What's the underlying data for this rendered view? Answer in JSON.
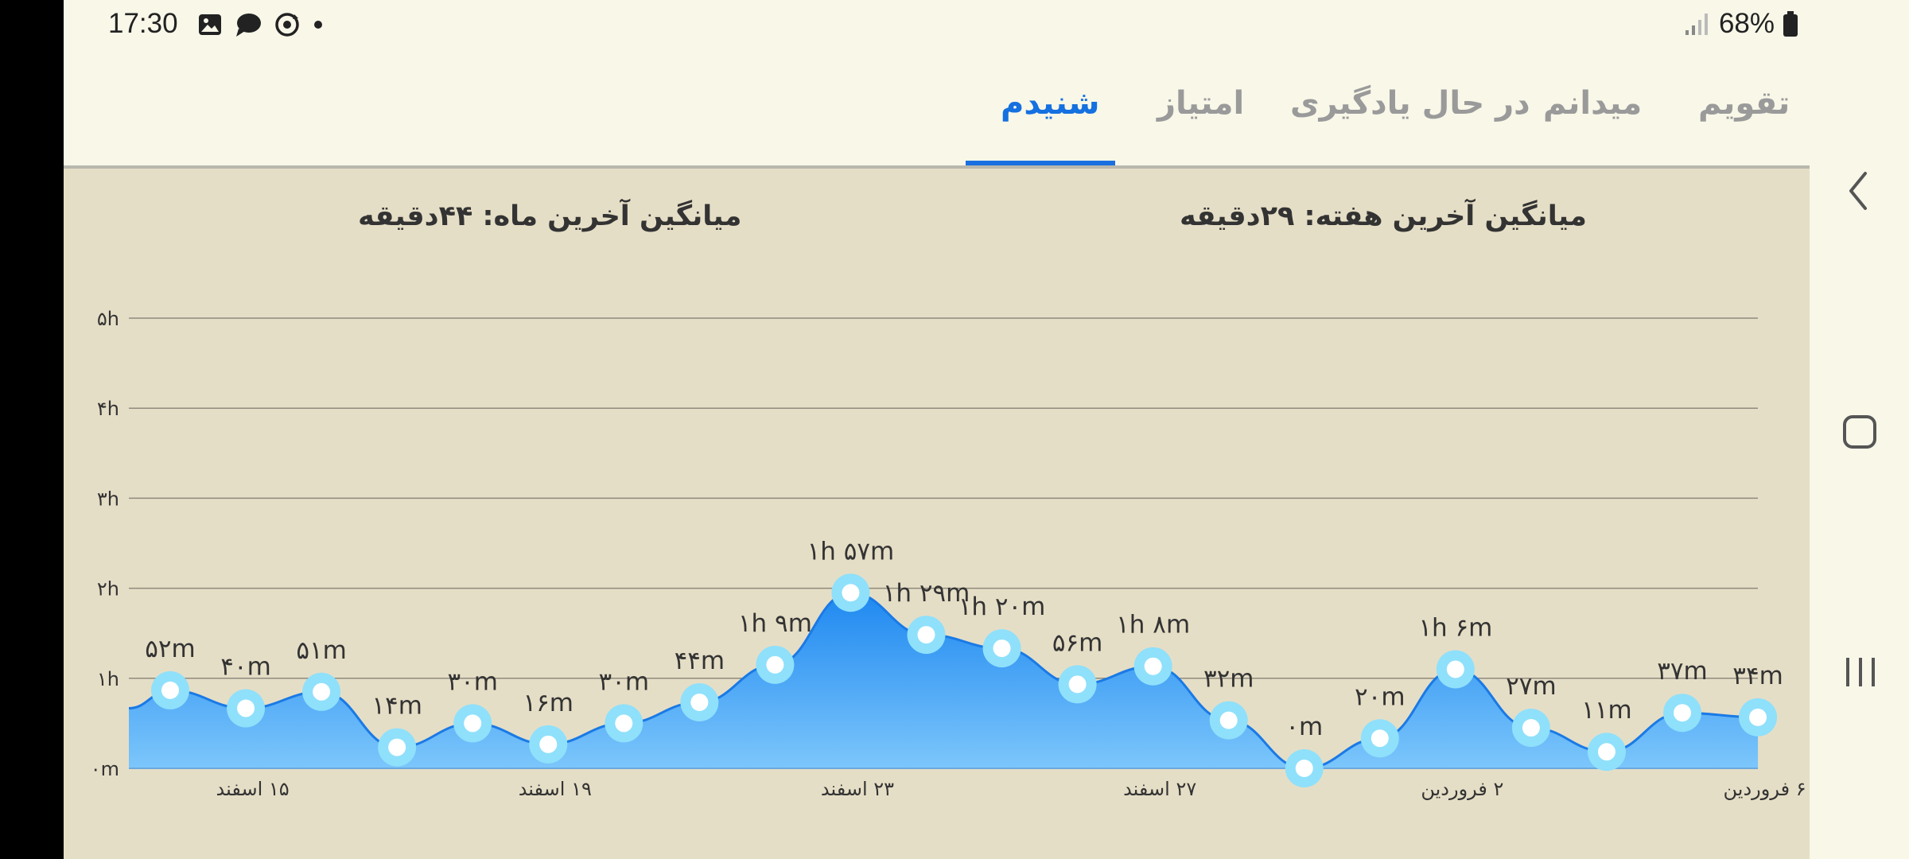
{
  "status_bar": {
    "time": "17:30",
    "battery": "68%",
    "icons": [
      "image-icon",
      "chat-bubble-icon",
      "sync-icon",
      "dot-icon"
    ]
  },
  "tabs": [
    {
      "label": "تقویم",
      "active": false
    },
    {
      "label": "میدانم",
      "active": false
    },
    {
      "label": "در حال یادگیری",
      "active": false
    },
    {
      "label": "امتیاز",
      "active": false
    },
    {
      "label": "شنیدم",
      "active": true
    }
  ],
  "averages": {
    "week": "میانگین آخرین هفته: ۲۹دقیقه",
    "month": "میانگین آخرین ماه: ۴۴دقیقه"
  },
  "chart_data": {
    "type": "area",
    "y_unit": "minutes",
    "ylim": [
      0,
      300
    ],
    "y_ticks": [
      {
        "value": 0,
        "label": "۰m"
      },
      {
        "value": 60,
        "label": "۱h"
      },
      {
        "value": 120,
        "label": "۲h"
      },
      {
        "value": 180,
        "label": "۳h"
      },
      {
        "value": 240,
        "label": "۴h"
      },
      {
        "value": 300,
        "label": "۵h"
      }
    ],
    "x_ticks": [
      {
        "index": 1.5,
        "label": "۱۵ اسفند"
      },
      {
        "index": 5.5,
        "label": "۱۹ اسفند"
      },
      {
        "index": 9.5,
        "label": "۲۳ اسفند"
      },
      {
        "index": 13.5,
        "label": "۲۷ اسفند"
      },
      {
        "index": 17.5,
        "label": "۲ فروردین"
      },
      {
        "index": 21.5,
        "label": "۶ فروردین"
      }
    ],
    "points": [
      {
        "value": 52,
        "label": "۵۲m"
      },
      {
        "value": 40,
        "label": "۴۰m"
      },
      {
        "value": 51,
        "label": "۵۱m"
      },
      {
        "value": 14,
        "label": "۱۴m"
      },
      {
        "value": 30,
        "label": "۳۰m"
      },
      {
        "value": 16,
        "label": "۱۶m"
      },
      {
        "value": 30,
        "label": "۳۰m"
      },
      {
        "value": 44,
        "label": "۴۴m"
      },
      {
        "value": 69,
        "label": "۱h ۹m"
      },
      {
        "value": 117,
        "label": "۱h ۵۷m"
      },
      {
        "value": 89,
        "label": "۱h ۲۹m"
      },
      {
        "value": 80,
        "label": "۱h ۲۰m"
      },
      {
        "value": 56,
        "label": "۵۶m"
      },
      {
        "value": 68,
        "label": "۱h ۸m"
      },
      {
        "value": 32,
        "label": "۳۲m"
      },
      {
        "value": 0,
        "label": "۰m"
      },
      {
        "value": 20,
        "label": "۲۰m"
      },
      {
        "value": 66,
        "label": "۱h ۶m"
      },
      {
        "value": 27,
        "label": "۲۷m"
      },
      {
        "value": 11,
        "label": "۱۱m"
      },
      {
        "value": 37,
        "label": "۳۷m"
      },
      {
        "value": 34,
        "label": "۳۴m"
      }
    ],
    "colors": {
      "area_top": "#1e88f0",
      "area_bottom": "#7cc6fb",
      "line": "#1a7ae6",
      "marker_outer": "#8fe0fb",
      "marker_inner": "#ffffff",
      "grid": "#8f8a7e"
    }
  },
  "navbar": {
    "icons": [
      "back-chevron-icon",
      "home-square-icon",
      "recents-icon"
    ]
  }
}
